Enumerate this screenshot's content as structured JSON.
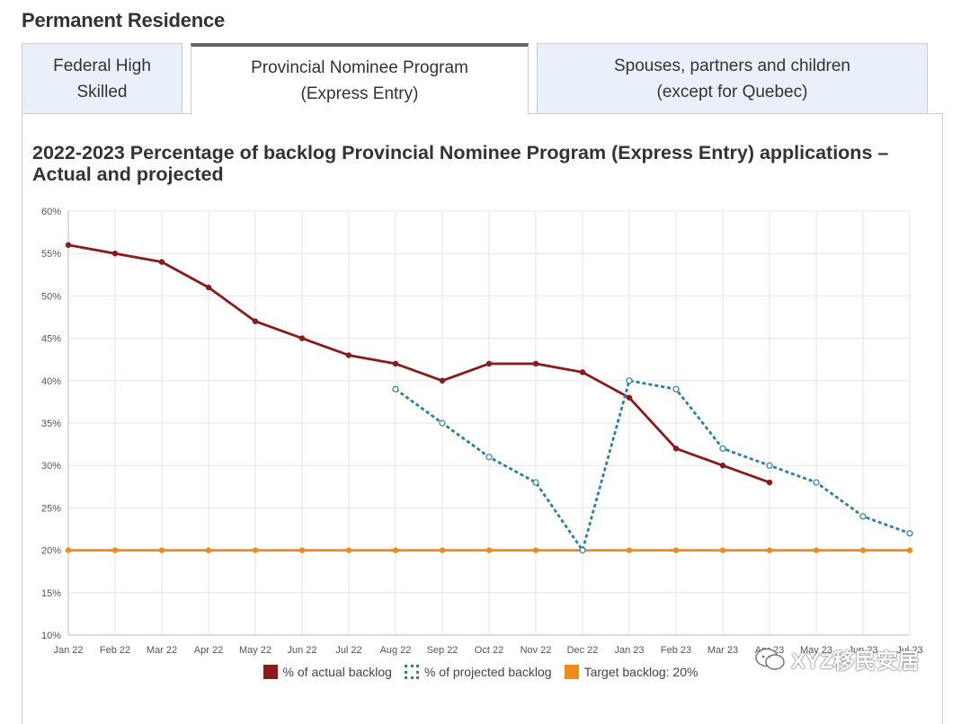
{
  "page": {
    "section_title": "Permanent Residence"
  },
  "tabs": [
    {
      "line1": "Federal High",
      "line2": "Skilled",
      "active": false
    },
    {
      "line1": "Provincial Nominee Program",
      "line2": "(Express Entry)",
      "active": true
    },
    {
      "line1": "Spouses, partners and children",
      "line2": "(except for Quebec)",
      "active": false
    }
  ],
  "watermark": {
    "text": "XYZ移民安居"
  },
  "colors": {
    "actual": "#8b1a1a",
    "projected": "#2a7fa8",
    "target": "#f08a1c",
    "grid": "#e6e6e6"
  },
  "chart_data": {
    "type": "line",
    "title": "2022-2023 Percentage of backlog Provincial Nominee Program (Express Entry) applications – Actual and projected",
    "xlabel": "",
    "ylabel": "",
    "ylim": [
      10,
      60
    ],
    "yticks": [
      "10%",
      "15%",
      "20%",
      "25%",
      "30%",
      "35%",
      "40%",
      "45%",
      "50%",
      "55%",
      "60%"
    ],
    "categories": [
      "Jan 22",
      "Feb 22",
      "Mar 22",
      "Apr 22",
      "May 22",
      "Jun 22",
      "Jul 22",
      "Aug 22",
      "Sep 22",
      "Oct 22",
      "Nov 22",
      "Dec 22",
      "Jan 23",
      "Feb 23",
      "Mar 23",
      "Apr 23",
      "May 23",
      "Jun 23",
      "Jul 23"
    ],
    "grid": true,
    "legend_position": "bottom",
    "series": [
      {
        "name": "% of actual backlog",
        "style": "solid",
        "values": [
          56,
          55,
          54,
          51,
          47,
          45,
          43,
          42,
          40,
          42,
          42,
          41,
          38,
          32,
          30,
          28,
          null,
          null,
          null
        ]
      },
      {
        "name": "% of projected backlog",
        "style": "dotted",
        "values": [
          null,
          null,
          null,
          null,
          null,
          null,
          null,
          39,
          35,
          31,
          28,
          20,
          40,
          39,
          32,
          30,
          28,
          24,
          22
        ]
      },
      {
        "name": "Target backlog: 20%",
        "style": "solid",
        "values": [
          20,
          20,
          20,
          20,
          20,
          20,
          20,
          20,
          20,
          20,
          20,
          20,
          20,
          20,
          20,
          20,
          20,
          20,
          20
        ]
      }
    ]
  }
}
